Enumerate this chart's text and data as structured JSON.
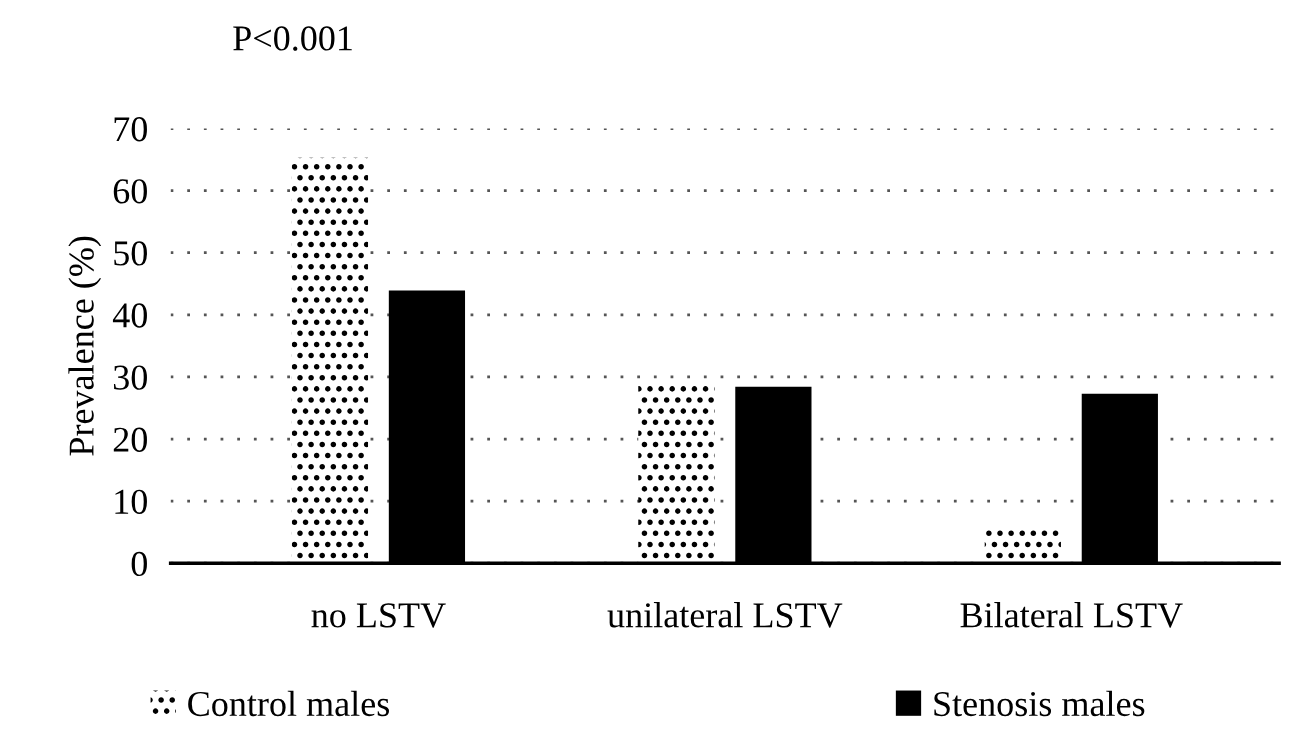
{
  "chart_data": {
    "type": "bar",
    "ylabel": "Prevalence (%)",
    "categories": [
      "no LSTV",
      "unilateral LSTV",
      "Bilateral LSTV"
    ],
    "series": [
      {
        "name": "Control males",
        "color": "#000000",
        "values": [
          65.3,
          28.7,
          5.5
        ]
      },
      {
        "name": "Stenosis males",
        "color": "#000000",
        "values": [
          43.9,
          28.4,
          27.3
        ]
      }
    ],
    "ylim": [
      0,
      70
    ],
    "yticks": [
      0,
      10,
      20,
      30,
      40,
      50,
      60,
      70
    ],
    "grid": "y",
    "legend": "bottom",
    "annotations": [
      "P<0.001"
    ]
  }
}
